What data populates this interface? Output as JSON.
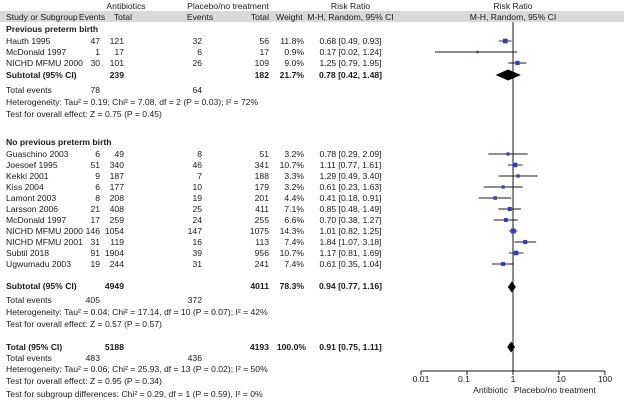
{
  "header": {
    "group1": "Antibiotics",
    "group2": "Placebo/no treatment",
    "rr_top": "Risk Ratio",
    "rr_top_right": "Risk Ratio",
    "cols": {
      "study": "Study or Subgroup",
      "events1": "Events",
      "total1": "Total",
      "events2": "Events",
      "total2": "Total",
      "weight": "Weight",
      "ci": "M-H, Random, 95% CI",
      "ci_right": "M-H, Random, 95% CI"
    }
  },
  "subgroups": [
    {
      "title": "Previous preterm birth",
      "studies": [
        {
          "name": "Hauth 1995",
          "e1": "47",
          "t1": "121",
          "e2": "32",
          "t2": "56",
          "w": "11.8%",
          "ci": "0.68 [0.49, 0.93]"
        },
        {
          "name": "McDonald 1997",
          "e1": "1",
          "t1": "17",
          "e2": "6",
          "t2": "17",
          "w": "0.9%",
          "ci": "0.17 [0.02, 1.24]"
        },
        {
          "name": "NICHD MFMU 2000",
          "e1": "30",
          "t1": "101",
          "e2": "26",
          "t2": "109",
          "w": "9.0%",
          "ci": "1.25 [0.79, 1.95]"
        }
      ],
      "subtotal": {
        "label": "Subtotal (95% CI)",
        "t1": "239",
        "t2": "182",
        "w": "21.7%",
        "ci": "0.78 [0.42, 1.48]"
      },
      "total_events": {
        "label": "Total events",
        "e1": "78",
        "e2": "64"
      },
      "heterogeneity": "Heterogeneity: Tau² = 0.19; Chi² = 7.08, df = 2 (P = 0.03); I² = 72%",
      "overall": "Test for overall effect: Z = 0.75 (P = 0.45)"
    },
    {
      "title": "No previous preterm birth",
      "studies": [
        {
          "name": "Guaschino 2003",
          "e1": "6",
          "t1": "49",
          "e2": "8",
          "t2": "51",
          "w": "3.2%",
          "ci": "0.78 [0.29, 2.09]"
        },
        {
          "name": "Joesoef 1995",
          "e1": "51",
          "t1": "340",
          "e2": "46",
          "t2": "341",
          "w": "10.7%",
          "ci": "1.11 [0.77, 1.61]"
        },
        {
          "name": "Kekki 2001",
          "e1": "9",
          "t1": "187",
          "e2": "7",
          "t2": "188",
          "w": "3.3%",
          "ci": "1.29 [0.49, 3.40]"
        },
        {
          "name": "Kiss 2004",
          "e1": "6",
          "t1": "177",
          "e2": "10",
          "t2": "179",
          "w": "3.2%",
          "ci": "0.61 [0.23, 1.63]"
        },
        {
          "name": "Lamont 2003",
          "e1": "8",
          "t1": "208",
          "e2": "19",
          "t2": "201",
          "w": "4.4%",
          "ci": "0.41 [0.18, 0.91]"
        },
        {
          "name": "Larsson 2006",
          "e1": "21",
          "t1": "408",
          "e2": "25",
          "t2": "411",
          "w": "7.1%",
          "ci": "0.85 [0.48, 1.49]"
        },
        {
          "name": "McDonald 1997",
          "e1": "17",
          "t1": "259",
          "e2": "24",
          "t2": "255",
          "w": "6.6%",
          "ci": "0.70 [0.38, 1.27]"
        },
        {
          "name": "NICHD MFMU 2000",
          "e1": "146",
          "t1": "1054",
          "e2": "147",
          "t2": "1075",
          "w": "14.3%",
          "ci": "1.01 [0.82, 1.25]"
        },
        {
          "name": "NICHD MFMU 2001",
          "e1": "31",
          "t1": "119",
          "e2": "16",
          "t2": "113",
          "w": "7.4%",
          "ci": "1.84 [1.07, 3.18]"
        },
        {
          "name": "Subtil 2018",
          "e1": "91",
          "t1": "1904",
          "e2": "39",
          "t2": "956",
          "w": "10.7%",
          "ci": "1.17 [0.81, 1.69]"
        },
        {
          "name": "Ugwumadu 2003",
          "e1": "19",
          "t1": "244",
          "e2": "31",
          "t2": "241",
          "w": "7.4%",
          "ci": "0.61 [0.35, 1.04]"
        }
      ],
      "subtotal": {
        "label": "Subtotal (95% CI)",
        "t1": "4949",
        "t2": "4011",
        "w": "78.3%",
        "ci": "0.94 [0.77, 1.16]"
      },
      "total_events": {
        "label": "Total events",
        "e1": "405",
        "e2": "372"
      },
      "heterogeneity": "Heterogeneity: Tau² = 0.04; Chi² = 17.14, df = 10 (P = 0.07); I² = 42%",
      "overall": "Test for overall effect: Z = 0.57 (P = 0.57)"
    }
  ],
  "total": {
    "label": "Total (95% CI)",
    "t1": "5188",
    "t2": "4193",
    "w": "100.0%",
    "ci": "0.91 [0.75, 1.11]",
    "events_label": "Total events",
    "e1": "483",
    "e2": "436",
    "heterogeneity": "Heterogeneity: Tau² = 0.06; Chi² = 25.93, df = 13 (P = 0.02); I² = 50%",
    "overall": "Test for overall effect: Z = 0.95 (P = 0.34)",
    "subgroup_diff": "Test for subgroup differences: Chi² = 0.29, df = 1 (P = 0.59), I² = 0%"
  },
  "axis": {
    "ticks": [
      "0.01",
      "0.1",
      "1",
      "10",
      "100"
    ],
    "favours_left": "Antibiotic",
    "favours_right": "Placebo/no treatment"
  },
  "chart_data": {
    "type": "forest",
    "scale": "log",
    "xlim": [
      0.01,
      100
    ],
    "reference_line": 1,
    "studies": [
      {
        "subgroup": "Previous preterm birth",
        "study": "Hauth 1995",
        "rr": 0.68,
        "lo": 0.49,
        "hi": 0.93,
        "weight": 11.8
      },
      {
        "subgroup": "Previous preterm birth",
        "study": "McDonald 1997",
        "rr": 0.17,
        "lo": 0.02,
        "hi": 1.24,
        "weight": 0.9
      },
      {
        "subgroup": "Previous preterm birth",
        "study": "NICHD MFMU 2000",
        "rr": 1.25,
        "lo": 0.79,
        "hi": 1.95,
        "weight": 9.0
      },
      {
        "subgroup": "No previous preterm birth",
        "study": "Guaschino 2003",
        "rr": 0.78,
        "lo": 0.29,
        "hi": 2.09,
        "weight": 3.2
      },
      {
        "subgroup": "No previous preterm birth",
        "study": "Joesoef 1995",
        "rr": 1.11,
        "lo": 0.77,
        "hi": 1.61,
        "weight": 10.7
      },
      {
        "subgroup": "No previous preterm birth",
        "study": "Kekki 2001",
        "rr": 1.29,
        "lo": 0.49,
        "hi": 3.4,
        "weight": 3.3
      },
      {
        "subgroup": "No previous preterm birth",
        "study": "Kiss 2004",
        "rr": 0.61,
        "lo": 0.23,
        "hi": 1.63,
        "weight": 3.2
      },
      {
        "subgroup": "No previous preterm birth",
        "study": "Lamont 2003",
        "rr": 0.41,
        "lo": 0.18,
        "hi": 0.91,
        "weight": 4.4
      },
      {
        "subgroup": "No previous preterm birth",
        "study": "Larsson 2006",
        "rr": 0.85,
        "lo": 0.48,
        "hi": 1.49,
        "weight": 7.1
      },
      {
        "subgroup": "No previous preterm birth",
        "study": "McDonald 1997",
        "rr": 0.7,
        "lo": 0.38,
        "hi": 1.27,
        "weight": 6.6
      },
      {
        "subgroup": "No previous preterm birth",
        "study": "NICHD MFMU 2000",
        "rr": 1.01,
        "lo": 0.82,
        "hi": 1.25,
        "weight": 14.3
      },
      {
        "subgroup": "No previous preterm birth",
        "study": "NICHD MFMU 2001",
        "rr": 1.84,
        "lo": 1.07,
        "hi": 3.18,
        "weight": 7.4
      },
      {
        "subgroup": "No previous preterm birth",
        "study": "Subtil 2018",
        "rr": 1.17,
        "lo": 0.81,
        "hi": 1.69,
        "weight": 10.7
      },
      {
        "subgroup": "No previous preterm birth",
        "study": "Ugwumadu 2003",
        "rr": 0.61,
        "lo": 0.35,
        "hi": 1.04,
        "weight": 7.4
      }
    ],
    "pooled": [
      {
        "label": "Subtotal (95% CI)",
        "subgroup": "Previous preterm birth",
        "rr": 0.78,
        "lo": 0.42,
        "hi": 1.48
      },
      {
        "label": "Subtotal (95% CI)",
        "subgroup": "No previous preterm birth",
        "rr": 0.94,
        "lo": 0.77,
        "hi": 1.16
      },
      {
        "label": "Total (95% CI)",
        "rr": 0.91,
        "lo": 0.75,
        "hi": 1.11
      }
    ],
    "colors": {
      "study_marker": "#2c3fbf",
      "pooled_marker": "#000000",
      "header_bg": "#d9d9d9"
    }
  }
}
